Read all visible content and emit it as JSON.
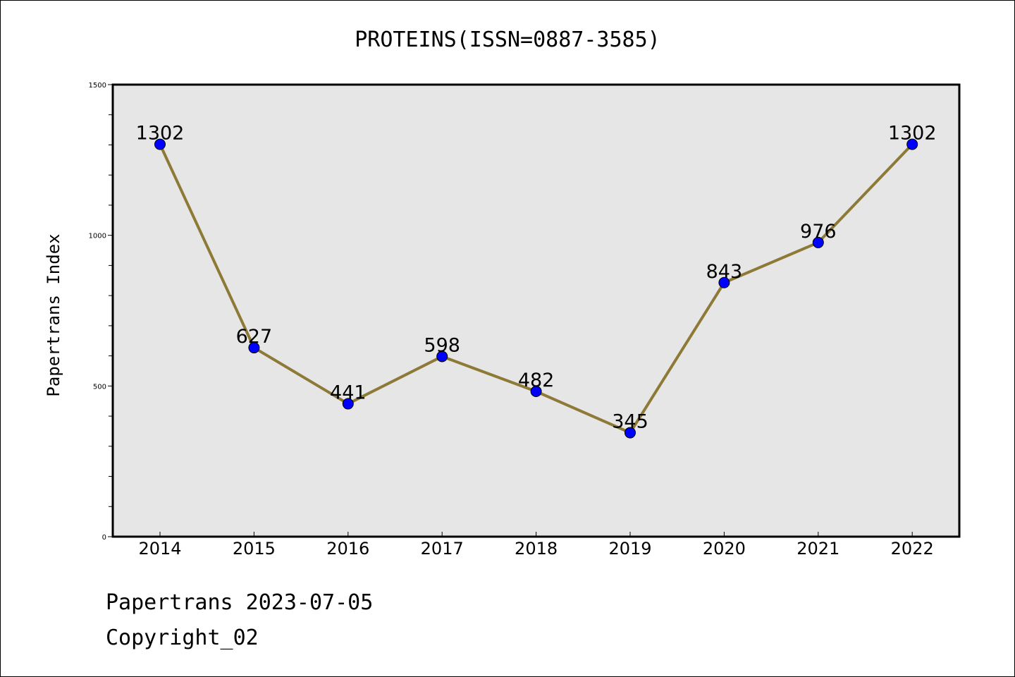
{
  "chart_data": {
    "type": "line",
    "title": "PROTEINS(ISSN=0887-3585)",
    "ylabel": "Papertrans Index",
    "xlabel": "",
    "categories": [
      "2014",
      "2015",
      "2016",
      "2017",
      "2018",
      "2019",
      "2020",
      "2021",
      "2022"
    ],
    "values": [
      1302,
      627,
      441,
      598,
      482,
      345,
      843,
      976,
      1302
    ],
    "ylim": [
      0,
      1500
    ],
    "yticks": [
      0,
      500,
      1000,
      1500
    ],
    "grid": false,
    "line_color": "#8c7a36",
    "marker_color": "#0000ff",
    "plot_background": "#e6e6e6"
  },
  "footer": {
    "line1": "Papertrans 2023-07-05",
    "line2": "Copyright_02"
  }
}
